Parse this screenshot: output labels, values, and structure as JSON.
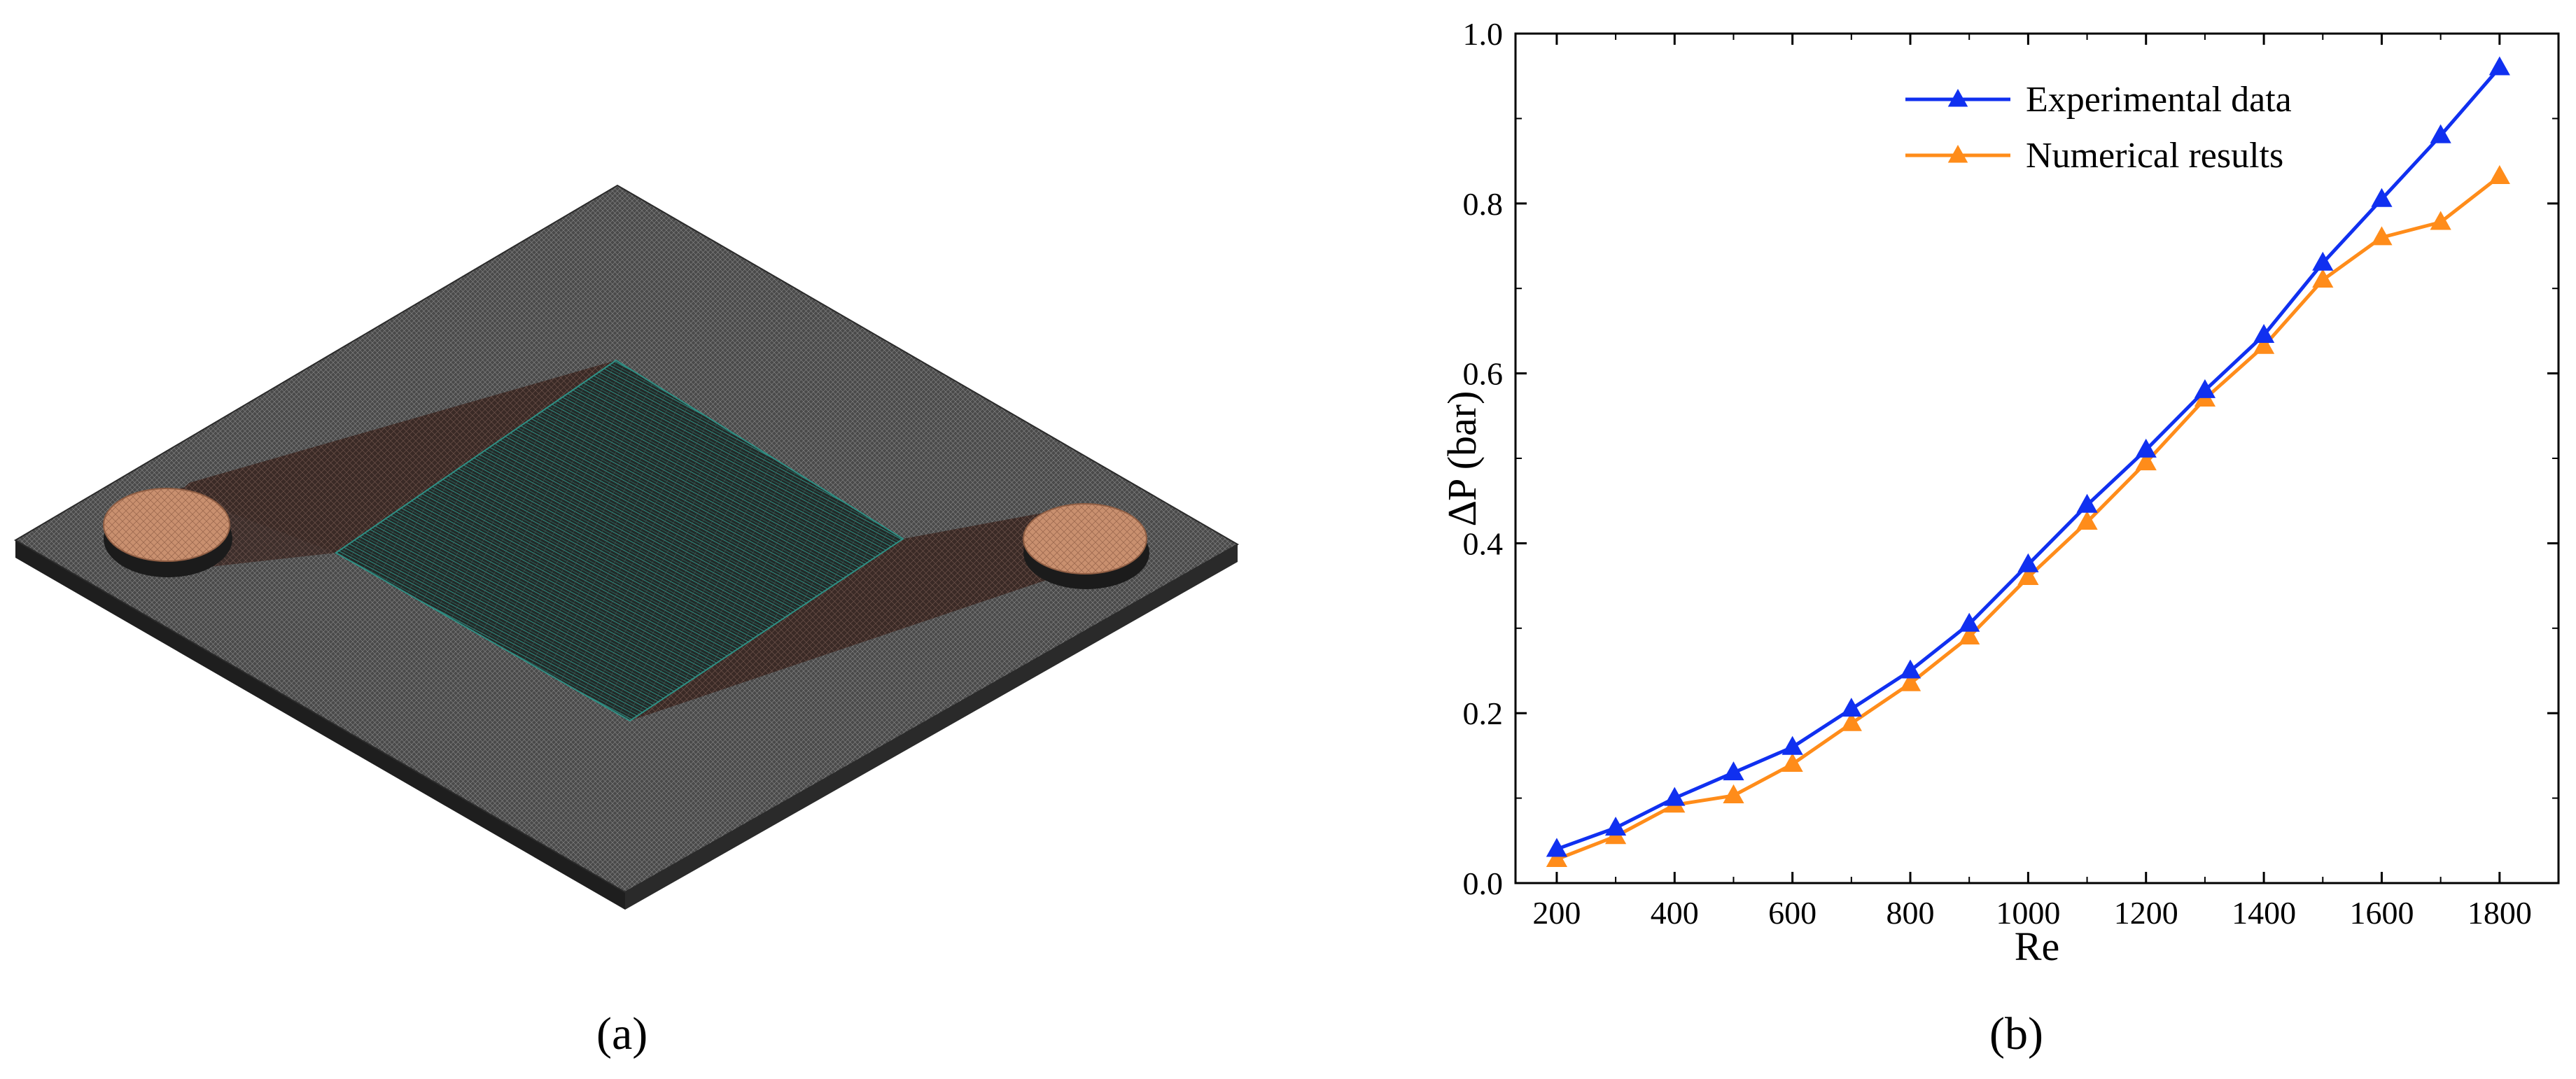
{
  "panels": {
    "a_label": "(a)",
    "b_label": "(b)"
  },
  "colors": {
    "plate_dark": "#3b3b3b",
    "plate_mid": "#6d6d6d",
    "channel_brown": "#4a3530",
    "mesh_teal": "#2f8f84",
    "port_copper": "#c9906f",
    "series_experimental": "#1030f0",
    "series_numerical": "#ff8c1a"
  },
  "chart_data": {
    "type": "line",
    "title": "",
    "xlabel": "Re",
    "ylabel": "∆P (bar)",
    "xlim": [
      130,
      1900
    ],
    "ylim": [
      0.0,
      1.0
    ],
    "xticks": [
      200,
      400,
      600,
      800,
      1000,
      1200,
      1400,
      1600,
      1800
    ],
    "yticks": [
      0.0,
      0.2,
      0.4,
      0.6,
      0.8,
      1.0
    ],
    "ytick_labels": [
      "0.0",
      "0.2",
      "0.4",
      "0.6",
      "0.8",
      "1.0"
    ],
    "grid": false,
    "legend_position": "top-right",
    "x": [
      200,
      300,
      400,
      500,
      600,
      700,
      800,
      900,
      1000,
      1100,
      1200,
      1300,
      1400,
      1500,
      1600,
      1700,
      1800
    ],
    "series": [
      {
        "name": "Experimental data",
        "color": "#1030f0",
        "marker": "triangle",
        "values": [
          0.04,
          0.065,
          0.1,
          0.13,
          0.16,
          0.205,
          0.25,
          0.305,
          0.375,
          0.445,
          0.51,
          0.58,
          0.645,
          0.73,
          0.805,
          0.88,
          0.96
        ]
      },
      {
        "name": "Numerical results",
        "color": "#ff8c1a",
        "marker": "triangle",
        "values": [
          0.028,
          0.055,
          0.092,
          0.103,
          0.14,
          0.188,
          0.235,
          0.29,
          0.36,
          0.425,
          0.495,
          0.57,
          0.632,
          0.71,
          0.76,
          0.778,
          0.832
        ]
      }
    ]
  }
}
